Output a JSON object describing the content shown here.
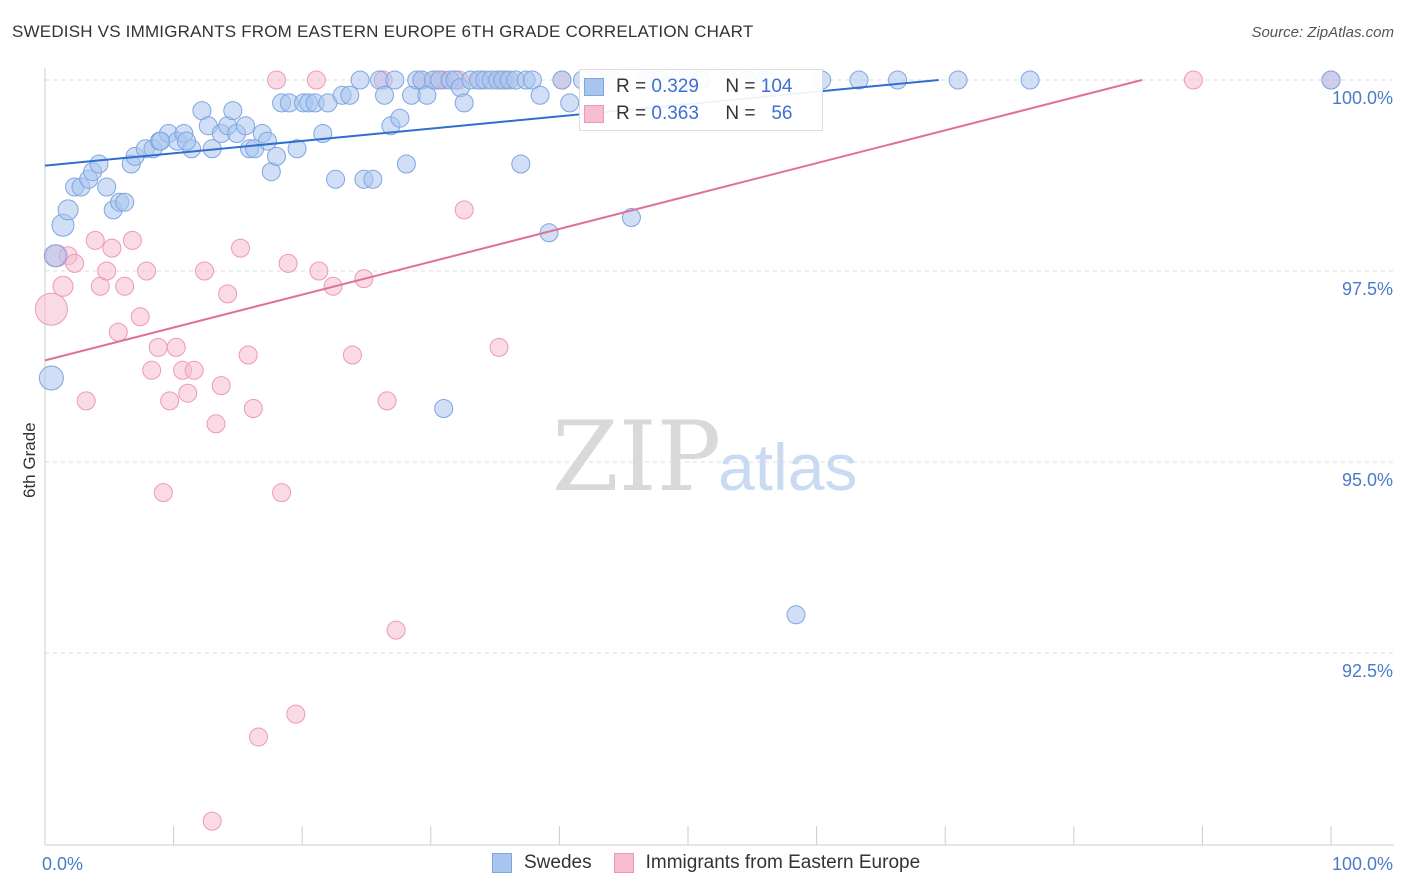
{
  "title": "SWEDISH VS IMMIGRANTS FROM EASTERN EUROPE 6TH GRADE CORRELATION CHART",
  "source": "Source: ZipAtlas.com",
  "watermark": {
    "zip": "ZIP",
    "atlas": "atlas"
  },
  "legend": {
    "rows": [
      {
        "r_label": "R =",
        "r_value": "0.329",
        "n_label": "N =",
        "n_value": "104"
      },
      {
        "r_label": "R =",
        "r_value": "0.363",
        "n_label": "N =",
        "n_value": "56"
      }
    ]
  },
  "bottom_legend": [
    {
      "label": "Swedes"
    },
    {
      "label": "Immigrants from Eastern Europe"
    }
  ],
  "colors": {
    "blue_fill": "#a9c5ef",
    "blue_stroke": "#7ea6e0",
    "blue_line": "#2f6fce",
    "pink_fill": "#f6bcd0",
    "pink_stroke": "#ec9ab7",
    "pink_line": "#e0709a",
    "tick_text": "#4a7bc8"
  },
  "chart_data": {
    "type": "scatter",
    "title": "SWEDISH VS IMMIGRANTS FROM EASTERN EUROPE 6TH GRADE CORRELATION CHART",
    "xlabel": "",
    "ylabel": "6th Grade",
    "xlim": [
      0,
      100
    ],
    "ylim": [
      90.25,
      100.2
    ],
    "x_tick_labels": {
      "left": "0.0%",
      "right": "100.0%"
    },
    "y_ticks": [
      {
        "value": 100.0,
        "label": "100.0%"
      },
      {
        "value": 97.5,
        "label": "97.5%"
      },
      {
        "value": 95.0,
        "label": "95.0%"
      },
      {
        "value": 92.5,
        "label": "92.5%"
      }
    ],
    "series": [
      {
        "name": "Swedes",
        "trend": {
          "x": [
            0,
            69.5
          ],
          "y": [
            98.88,
            100.0
          ]
        },
        "points": [
          [
            0.5,
            96.1,
            12
          ],
          [
            0.8,
            97.7,
            11
          ],
          [
            1.4,
            98.1,
            11
          ],
          [
            1.8,
            98.3,
            10
          ],
          [
            2.3,
            98.6,
            9
          ],
          [
            2.8,
            98.6,
            9
          ],
          [
            3.4,
            98.7,
            9
          ],
          [
            3.7,
            98.8,
            9
          ],
          [
            4.2,
            98.9,
            9
          ],
          [
            4.8,
            98.6,
            9
          ],
          [
            5.3,
            98.3,
            9
          ],
          [
            5.8,
            98.4,
            9
          ],
          [
            6.2,
            98.4,
            9
          ],
          [
            6.7,
            98.9,
            9
          ],
          [
            7.0,
            99.0,
            9
          ],
          [
            7.8,
            99.1,
            9
          ],
          [
            8.4,
            99.1,
            9
          ],
          [
            8.9,
            99.2,
            9
          ],
          [
            9.6,
            99.3,
            9
          ],
          [
            10.3,
            99.2,
            9
          ],
          [
            10.8,
            99.3,
            9
          ],
          [
            11.4,
            99.1,
            9
          ],
          [
            12.2,
            99.6,
            9
          ],
          [
            12.7,
            99.4,
            9
          ],
          [
            13.0,
            99.1,
            9
          ],
          [
            13.7,
            99.3,
            9
          ],
          [
            14.2,
            99.4,
            9
          ],
          [
            14.6,
            99.6,
            9
          ],
          [
            14.9,
            99.3,
            9
          ],
          [
            15.6,
            99.4,
            9
          ],
          [
            15.9,
            99.1,
            9
          ],
          [
            16.3,
            99.1,
            9
          ],
          [
            16.9,
            99.3,
            9
          ],
          [
            17.3,
            99.2,
            9
          ],
          [
            17.6,
            98.8,
            9
          ],
          [
            18.0,
            99.0,
            9
          ],
          [
            18.4,
            99.7,
            9
          ],
          [
            19.0,
            99.7,
            9
          ],
          [
            19.6,
            99.1,
            9
          ],
          [
            20.1,
            99.7,
            9
          ],
          [
            20.5,
            99.7,
            9
          ],
          [
            21.0,
            99.7,
            9
          ],
          [
            21.6,
            99.3,
            9
          ],
          [
            22.0,
            99.7,
            9
          ],
          [
            22.6,
            98.7,
            9
          ],
          [
            23.1,
            99.8,
            9
          ],
          [
            23.7,
            99.8,
            9
          ],
          [
            24.5,
            100.0,
            9
          ],
          [
            24.8,
            98.7,
            9
          ],
          [
            25.5,
            98.7,
            9
          ],
          [
            26.0,
            100.0,
            9
          ],
          [
            26.4,
            99.8,
            9
          ],
          [
            26.9,
            99.4,
            9
          ],
          [
            27.2,
            100.0,
            9
          ],
          [
            27.6,
            99.5,
            9
          ],
          [
            28.1,
            98.9,
            9
          ],
          [
            28.5,
            99.8,
            9
          ],
          [
            28.9,
            100.0,
            9
          ],
          [
            29.3,
            100.0,
            9
          ],
          [
            29.7,
            99.8,
            9
          ],
          [
            30.2,
            100.0,
            9
          ],
          [
            30.7,
            100.0,
            9
          ],
          [
            31.0,
            95.7,
            9
          ],
          [
            31.5,
            100.0,
            9
          ],
          [
            31.9,
            100.0,
            9
          ],
          [
            32.3,
            99.9,
            9
          ],
          [
            32.6,
            99.7,
            9
          ],
          [
            33.1,
            100.0,
            9
          ],
          [
            33.7,
            100.0,
            9
          ],
          [
            34.2,
            100.0,
            9
          ],
          [
            34.7,
            100.0,
            9
          ],
          [
            35.2,
            100.0,
            9
          ],
          [
            35.6,
            100.0,
            9
          ],
          [
            36.1,
            100.0,
            9
          ],
          [
            36.6,
            100.0,
            9
          ],
          [
            37.0,
            98.9,
            9
          ],
          [
            37.4,
            100.0,
            9
          ],
          [
            37.9,
            100.0,
            9
          ],
          [
            39.2,
            98.0,
            9
          ],
          [
            40.2,
            100.0,
            9
          ],
          [
            40.8,
            99.7,
            9
          ],
          [
            41.8,
            100.0,
            9
          ],
          [
            42.4,
            100.0,
            9
          ],
          [
            43.0,
            100.0,
            9
          ],
          [
            45.6,
            98.2,
            9
          ],
          [
            46.7,
            100.0,
            9
          ],
          [
            47.8,
            100.0,
            9
          ],
          [
            49.2,
            100.0,
            9
          ],
          [
            51.0,
            100.0,
            9
          ],
          [
            53.2,
            100.0,
            9
          ],
          [
            54.6,
            100.0,
            9
          ],
          [
            58.4,
            93.0,
            9
          ],
          [
            60.4,
            100.0,
            9
          ],
          [
            63.3,
            100.0,
            9
          ],
          [
            66.3,
            100.0,
            9
          ],
          [
            71.0,
            100.0,
            9
          ],
          [
            76.6,
            100.0,
            9
          ],
          [
            100.0,
            100.0,
            9
          ],
          [
            38.5,
            99.8,
            9
          ],
          [
            44.2,
            100.0,
            9
          ],
          [
            50.1,
            100.0,
            9
          ],
          [
            56.0,
            100.0,
            9
          ],
          [
            11.0,
            99.2,
            9
          ],
          [
            9.0,
            99.2,
            9
          ]
        ]
      },
      {
        "name": "Immigrants from Eastern Europe",
        "trend": {
          "x": [
            0,
            85.3
          ],
          "y": [
            96.33,
            100.0
          ]
        },
        "points": [
          [
            0.5,
            97.0,
            16
          ],
          [
            0.9,
            97.7,
            11
          ],
          [
            1.4,
            97.3,
            10
          ],
          [
            1.8,
            97.7,
            9
          ],
          [
            2.3,
            97.6,
            9
          ],
          [
            3.2,
            95.8,
            9
          ],
          [
            3.9,
            97.9,
            9
          ],
          [
            4.3,
            97.3,
            9
          ],
          [
            4.8,
            97.5,
            9
          ],
          [
            5.2,
            97.8,
            9
          ],
          [
            5.7,
            96.7,
            9
          ],
          [
            6.2,
            97.3,
            9
          ],
          [
            6.8,
            97.9,
            9
          ],
          [
            7.4,
            96.9,
            9
          ],
          [
            7.9,
            97.5,
            9
          ],
          [
            8.3,
            96.2,
            9
          ],
          [
            8.8,
            96.5,
            9
          ],
          [
            9.2,
            94.6,
            9
          ],
          [
            9.7,
            95.8,
            9
          ],
          [
            10.2,
            96.5,
            9
          ],
          [
            10.7,
            96.2,
            9
          ],
          [
            11.1,
            95.9,
            9
          ],
          [
            11.6,
            96.2,
            9
          ],
          [
            12.4,
            97.5,
            9
          ],
          [
            13.0,
            90.3,
            9
          ],
          [
            13.3,
            95.5,
            9
          ],
          [
            13.7,
            96.0,
            9
          ],
          [
            14.2,
            97.2,
            9
          ],
          [
            15.2,
            97.8,
            9
          ],
          [
            15.8,
            96.4,
            9
          ],
          [
            16.2,
            95.7,
            9
          ],
          [
            16.6,
            91.4,
            9
          ],
          [
            18.0,
            100.0,
            9
          ],
          [
            18.4,
            94.6,
            9
          ],
          [
            18.9,
            97.6,
            9
          ],
          [
            19.5,
            91.7,
            9
          ],
          [
            21.1,
            100.0,
            9
          ],
          [
            21.3,
            97.5,
            9
          ],
          [
            22.4,
            97.3,
            9
          ],
          [
            23.9,
            96.4,
            9
          ],
          [
            24.8,
            97.4,
            9
          ],
          [
            26.3,
            100.0,
            9
          ],
          [
            26.6,
            95.8,
            9
          ],
          [
            27.3,
            92.8,
            9
          ],
          [
            29.3,
            100.0,
            9
          ],
          [
            31.0,
            100.0,
            9
          ],
          [
            32.2,
            100.0,
            9
          ],
          [
            32.6,
            98.3,
            9
          ],
          [
            33.8,
            100.0,
            9
          ],
          [
            35.2,
            100.0,
            9
          ],
          [
            35.8,
            100.0,
            9
          ],
          [
            35.3,
            96.5,
            9
          ],
          [
            40.2,
            100.0,
            9
          ],
          [
            89.3,
            100.0,
            9
          ],
          [
            100.0,
            100.0,
            9
          ],
          [
            30.5,
            100.0,
            9
          ]
        ]
      }
    ]
  }
}
